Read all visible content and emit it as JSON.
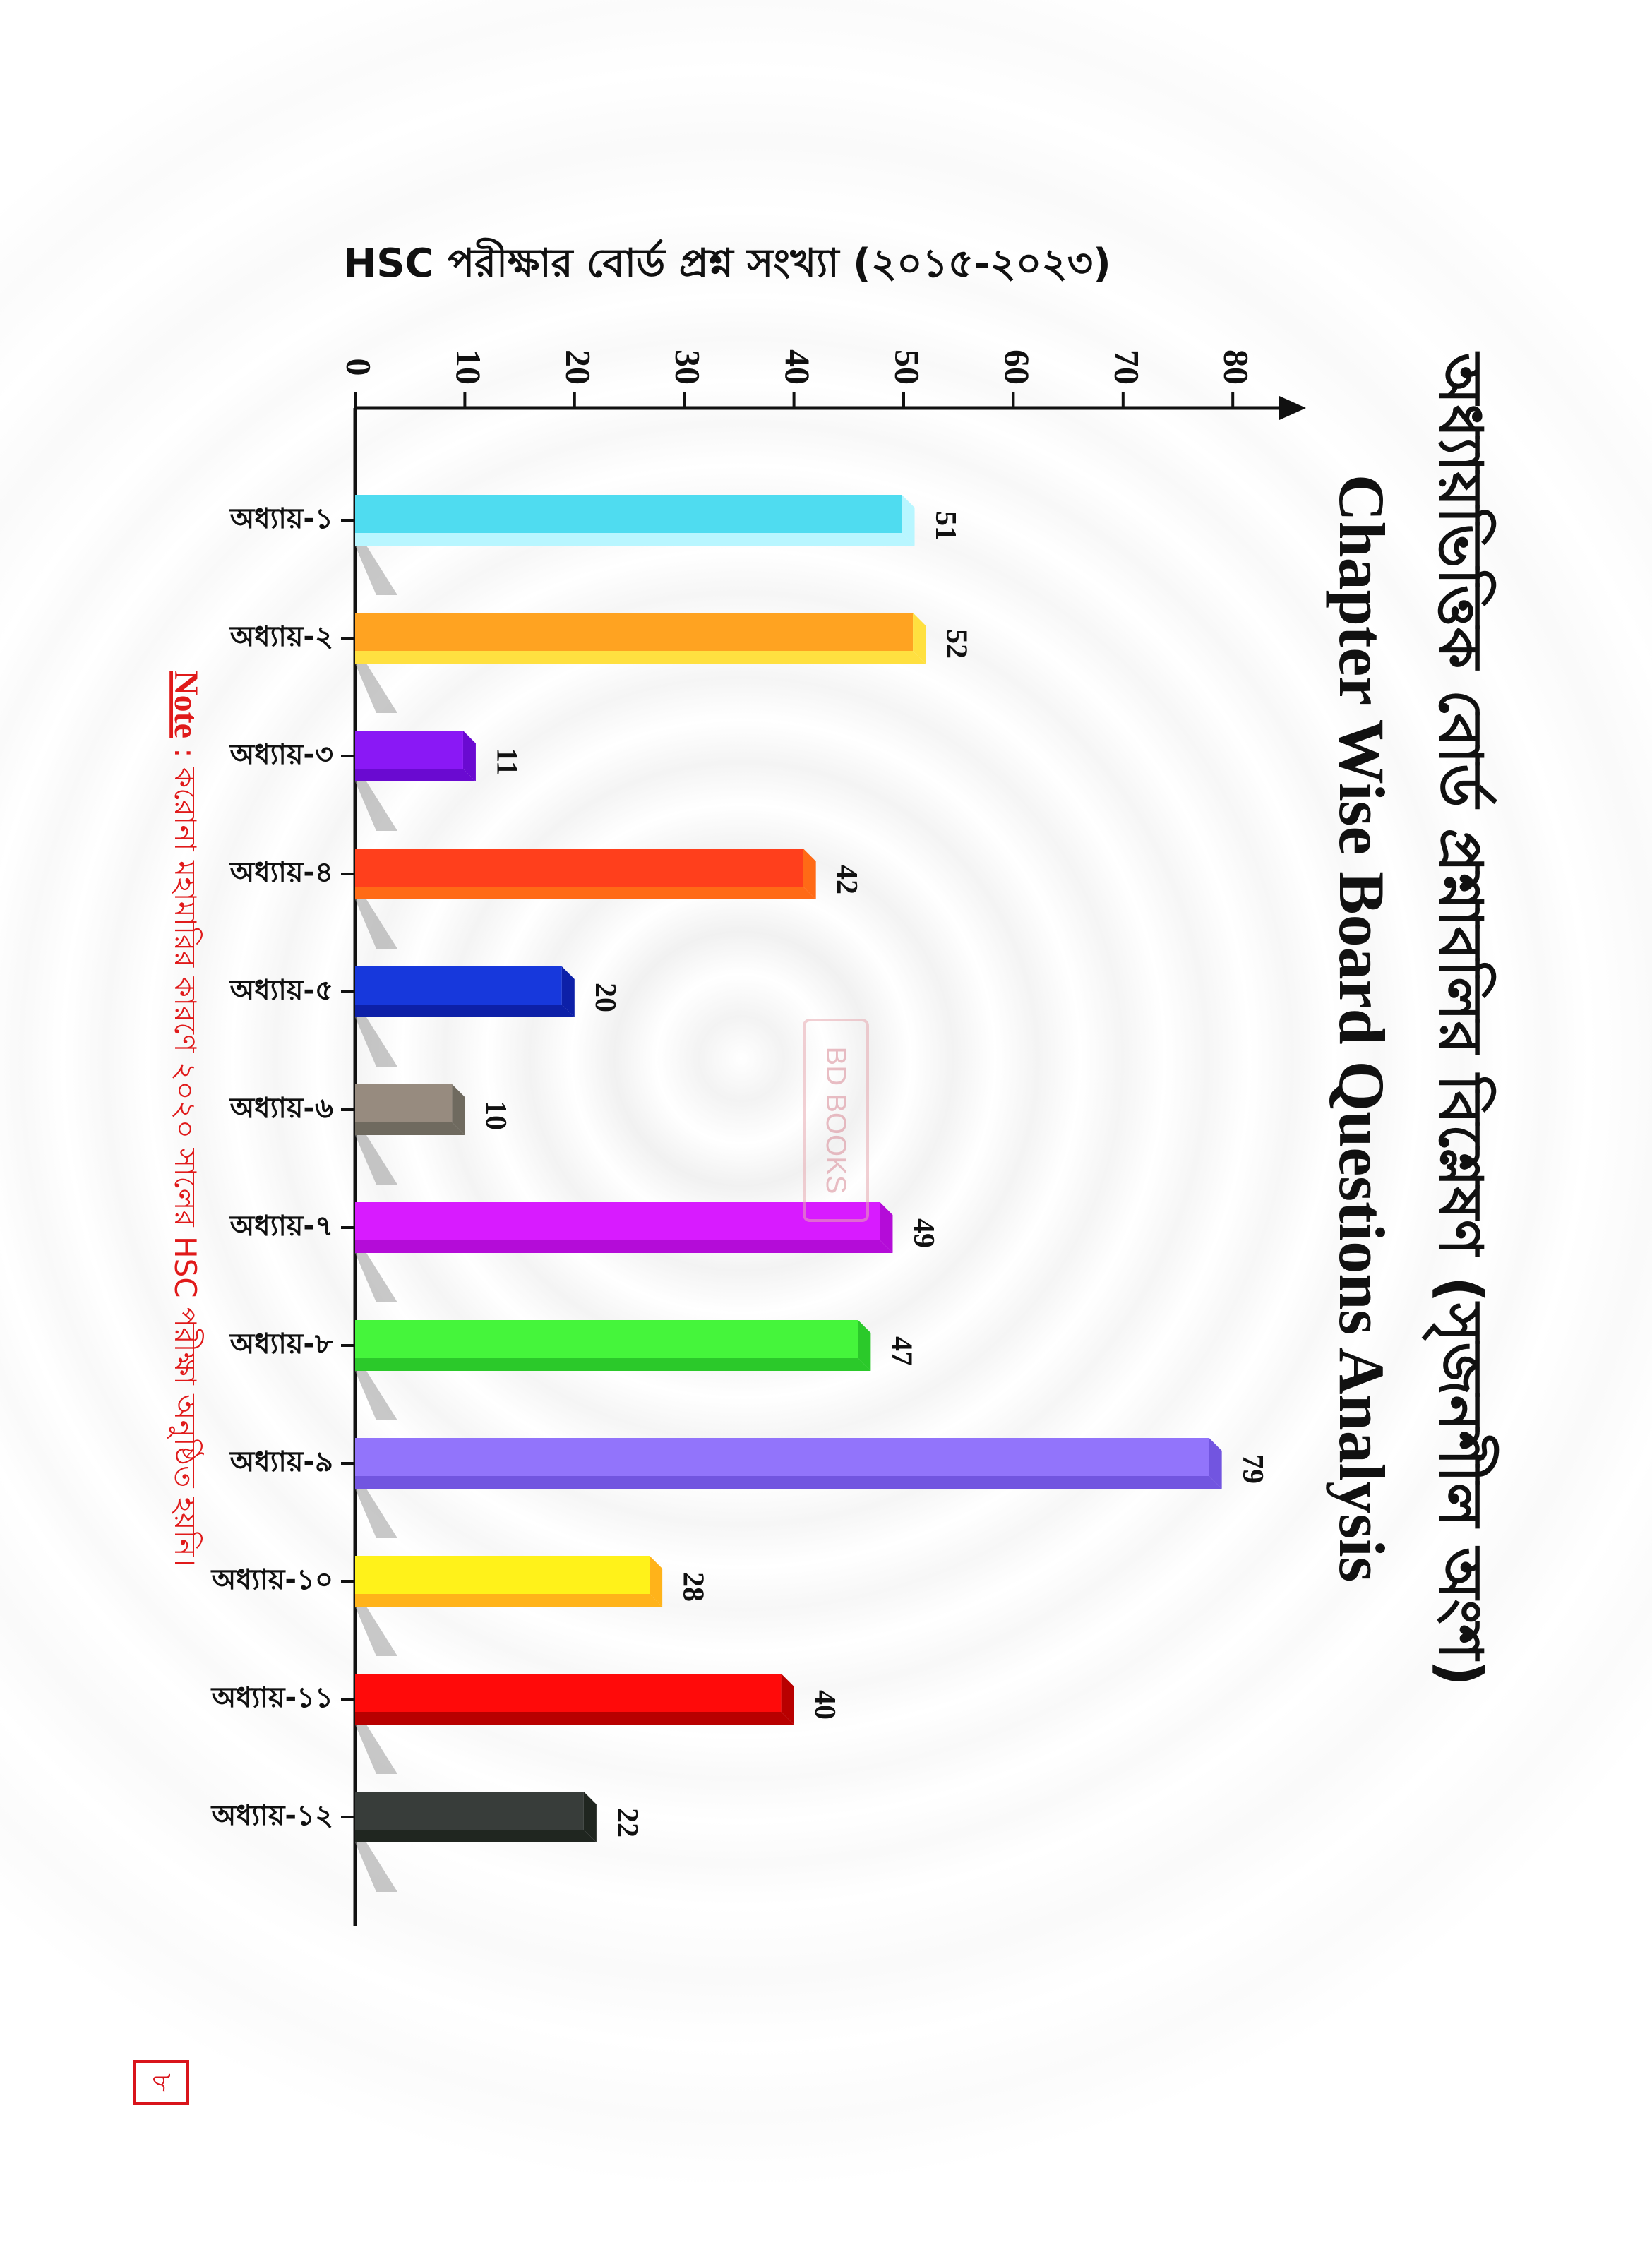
{
  "title_bn": "অধ্যায়ভিত্তিক বোর্ড প্রশ্নাবলির বিশ্লেষণ (সৃজনশীল অংশ)",
  "title_en": "Chapter Wise Board Questions Analysis",
  "note_label": "Note",
  "note_text": ": করোনা মহামারির কারণে ২০২০ সালের HSC পরীক্ষা অনুষ্ঠিত হয়নি।",
  "page_number": "৮",
  "watermark": "BD BOOKS",
  "chart_data": {
    "type": "bar",
    "orientation": "rotated 90° clockwise on page",
    "ylabel": "HSC পরীক্ষার বোর্ড প্রশ্ন সংখ্যা (২০১৫-২০২৩)",
    "xlabel": "",
    "ylim": [
      0,
      80
    ],
    "yticks": [
      0,
      10,
      20,
      30,
      40,
      50,
      60,
      70,
      80
    ],
    "categories": [
      "অধ্যায়-১",
      "অধ্যায়-২",
      "অধ্যায়-৩",
      "অধ্যায়-৪",
      "অধ্যায়-৫",
      "অধ্যায়-৬",
      "অধ্যায়-৭",
      "অধ্যায়-৮",
      "অধ্যায়-৯",
      "অধ্যায়-১০",
      "অধ্যায়-১১",
      "অধ্যায়-১২"
    ],
    "values": [
      51,
      52,
      11,
      42,
      20,
      10,
      49,
      47,
      79,
      28,
      40,
      22
    ],
    "colors": [
      "#4fdcf0",
      "#ffa321",
      "#8a18f5",
      "#ff3f1c",
      "#1738dc",
      "#978b7f",
      "#d81bff",
      "#45f53b",
      "#9274fb",
      "#fff21a",
      "#ff0a0a",
      "#383d3a"
    ],
    "side_colors": [
      "#b8f6ff",
      "#ffe040",
      "#6a0ad1",
      "#ff6a16",
      "#0d20a8",
      "#6f6a5f",
      "#b40cd8",
      "#2bc92a",
      "#7255e0",
      "#ffb31a",
      "#b80000",
      "#202620"
    ]
  }
}
